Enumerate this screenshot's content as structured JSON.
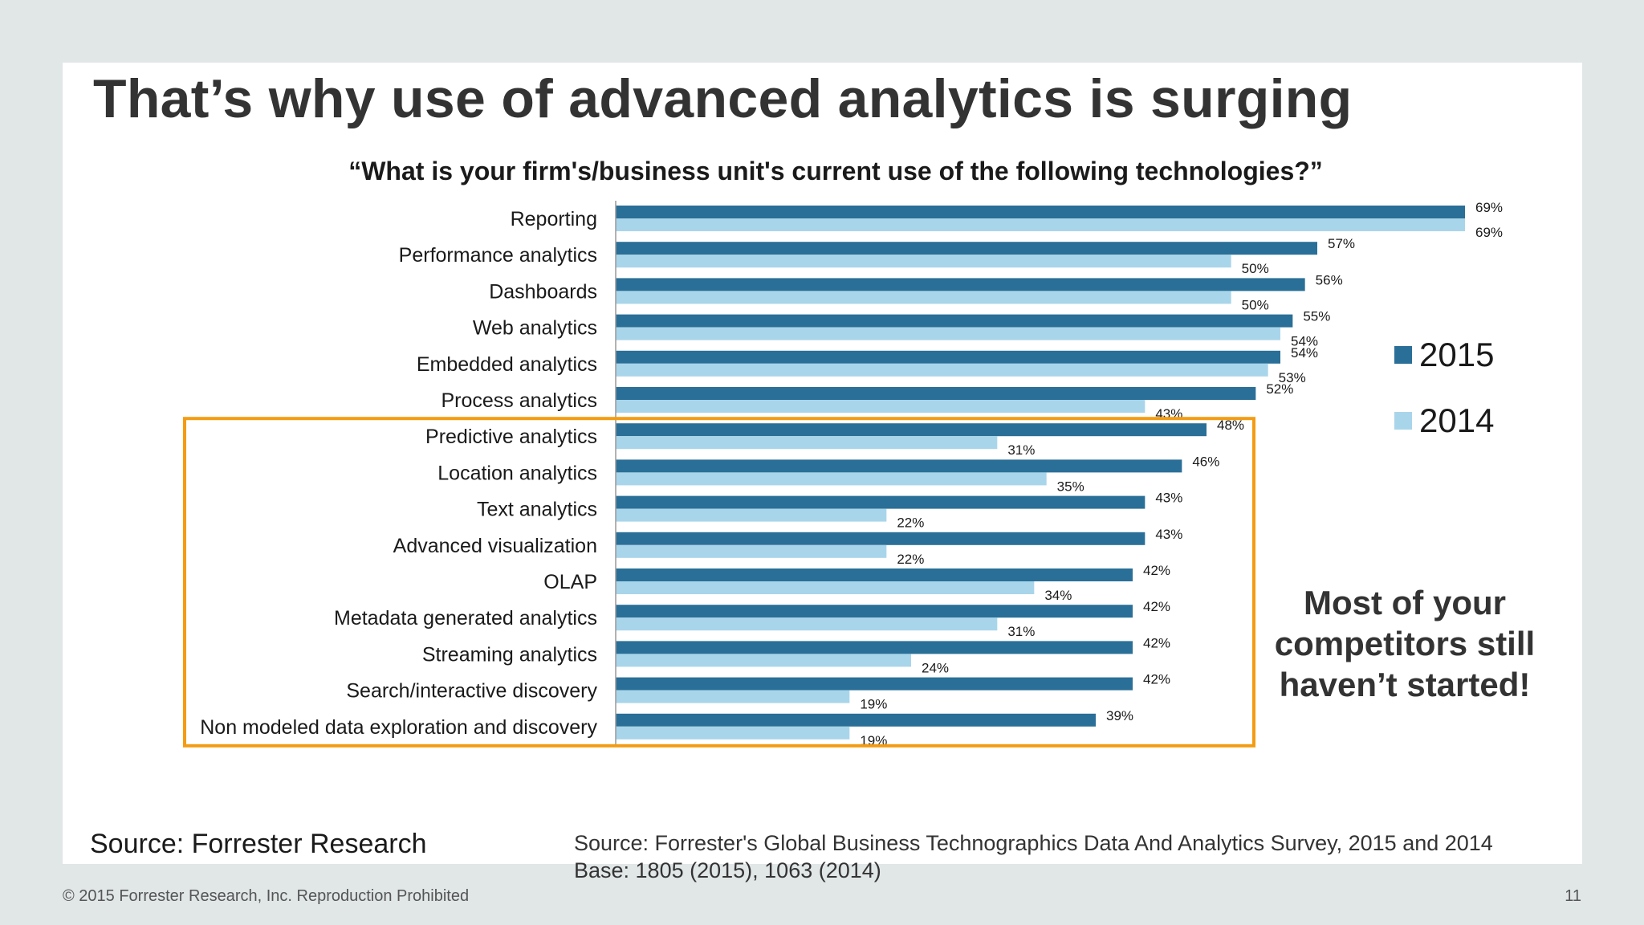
{
  "slide": {
    "title": "That’s why use of advanced analytics is surging",
    "callout": "Most of your competitors still haven’t started!",
    "source_left": "Source: Forrester Research",
    "source_line1": "Source: Forrester's Global Business Technographics Data And Analytics Survey, 2015 and 2014",
    "source_line2": "Base: 1805 (2015), 1063 (2014)",
    "copyright": "© 2015 Forrester Research, Inc. Reproduction Prohibited",
    "page_number": "11"
  },
  "colors": {
    "series_2015": "#2a6f97",
    "series_2014": "#a9d5ea",
    "highlight_box": "#f39c12"
  },
  "chart_data": {
    "type": "bar",
    "orientation": "horizontal",
    "title": "“What is your firm's/business unit's current use of the following technologies?”",
    "categories": [
      "Reporting",
      "Performance analytics",
      "Dashboards",
      "Web analytics",
      "Embedded analytics",
      "Process analytics",
      "Predictive analytics",
      "Location analytics",
      "Text analytics",
      "Advanced visualization",
      "OLAP",
      "Metadata generated analytics",
      "Streaming analytics",
      "Search/interactive discovery",
      "Non modeled data exploration and discovery"
    ],
    "series": [
      {
        "name": "2015",
        "values": [
          69,
          57,
          56,
          55,
          54,
          52,
          48,
          46,
          43,
          43,
          42,
          42,
          42,
          42,
          39
        ]
      },
      {
        "name": "2014",
        "values": [
          69,
          50,
          50,
          54,
          53,
          43,
          31,
          35,
          22,
          22,
          34,
          31,
          24,
          19,
          19
        ]
      }
    ],
    "value_suffix": "%",
    "xlim": [
      0,
      69
    ],
    "grid": false,
    "legend_position": "right",
    "highlighted_categories": [
      "Predictive analytics",
      "Location analytics",
      "Text analytics",
      "Advanced visualization",
      "OLAP",
      "Metadata generated analytics",
      "Streaming analytics",
      "Search/interactive discovery",
      "Non modeled data exploration and discovery"
    ]
  }
}
